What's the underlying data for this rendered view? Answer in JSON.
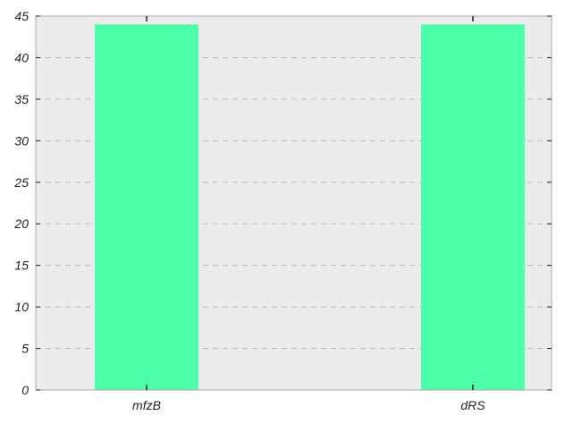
{
  "chart_data": {
    "type": "bar",
    "title": "",
    "xlabel": "",
    "ylabel": "",
    "categories": [
      "mfzB",
      "dRS"
    ],
    "values": [
      44,
      44
    ],
    "ylim": [
      0,
      45
    ],
    "yticks": [
      0,
      5,
      10,
      15,
      20,
      25,
      30,
      35,
      40,
      45
    ],
    "grid": true,
    "legend": "none",
    "colors": {
      "bar": "#4dffaa",
      "plot_background": "#ececec",
      "grid": "#bbbbbb",
      "axis": "#aaaaaa",
      "tick": "#222222"
    }
  }
}
